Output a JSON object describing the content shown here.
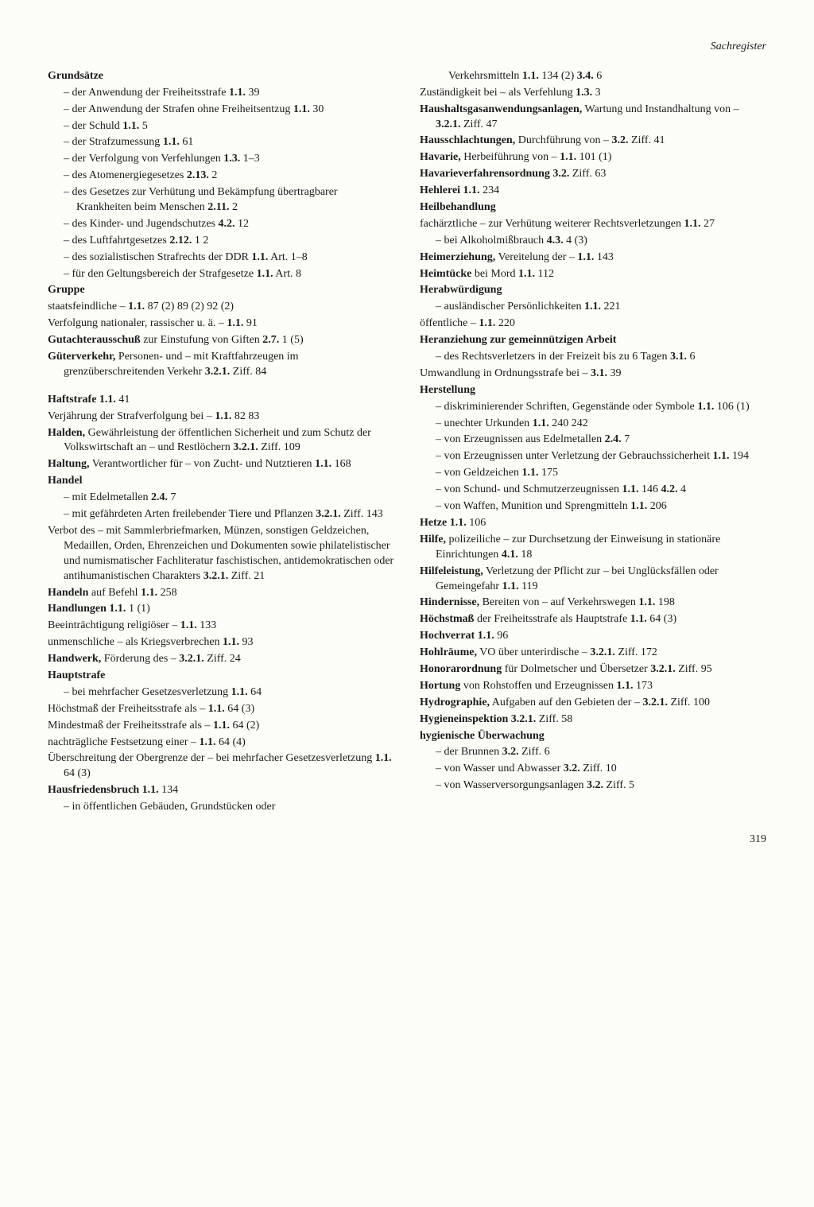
{
  "header": "Sachregister",
  "pageNumber": "319",
  "left": [
    {
      "type": "bold",
      "text": "Grundsätze"
    },
    {
      "type": "sub",
      "html": "der Anwendung der Freiheitsstrafe  <b>1.1.</b> 39"
    },
    {
      "type": "sub",
      "html": "der Anwendung der Strafen ohne Freiheitsentzug  <b>1.1.</b> 30"
    },
    {
      "type": "sub",
      "html": "der Schuld  <b>1.1.</b> 5"
    },
    {
      "type": "sub",
      "html": "der Strafzumessung  <b>1.1.</b> 61"
    },
    {
      "type": "sub",
      "html": "der Verfolgung von Verfehlungen  <b>1.3.</b> 1–3"
    },
    {
      "type": "sub",
      "html": "des Atomenergiegesetzes  <b>2.13.</b> 2"
    },
    {
      "type": "sub",
      "html": "des Gesetzes zur Verhütung und Bekämpfung übertragbarer Krankheiten beim Menschen <b>2.11.</b> 2"
    },
    {
      "type": "sub",
      "html": "des Kinder- und Jugendschutzes  <b>4.2.</b> 12"
    },
    {
      "type": "sub",
      "html": "des Luftfahrtgesetzes  <b>2.12.</b> 1 2"
    },
    {
      "type": "sub",
      "html": "des sozialistischen Strafrechts der DDR <b>1.1.</b> Art. 1–8"
    },
    {
      "type": "sub",
      "html": "für den Geltungsbereich der Strafgesetze <b>1.1.</b> Art. 8"
    },
    {
      "type": "bold",
      "text": "Gruppe"
    },
    {
      "type": "line",
      "html": "staatsfeindliche –  <b>1.1.</b> 87 (2) 89 (2) 92 (2)"
    },
    {
      "type": "line",
      "html": "Verfolgung nationaler, rassischer u. ä. –  <b>1.1.</b> 91"
    },
    {
      "type": "line",
      "html": "<b>Gutachterausschuß</b> zur Einstufung von Giften <b>2.7.</b> 1 (5)"
    },
    {
      "type": "line",
      "html": "<b>Güterverkehr,</b> Personen- und – mit Kraftfahrzeugen im grenzüberschreitenden Verkehr <b>3.2.1.</b> Ziff. 84"
    },
    {
      "type": "spacer"
    },
    {
      "type": "line",
      "html": "<b>Haftstrafe  1.1.</b> 41"
    },
    {
      "type": "line",
      "html": "Verjährung der Strafverfolgung bei –  <b>1.1.</b> 82 83"
    },
    {
      "type": "line",
      "html": "<b>Halden,</b> Gewährleistung der öffentlichen Sicherheit und zum Schutz der Volkswirtschaft an – und Restlöchern  <b>3.2.1.</b> Ziff. 109"
    },
    {
      "type": "line",
      "html": "<b>Haltung,</b> Verantwortlicher für – von Zucht- und Nutztieren  <b>1.1.</b> 168"
    },
    {
      "type": "bold",
      "text": "Handel"
    },
    {
      "type": "sub",
      "html": "mit Edelmetallen  <b>2.4.</b> 7"
    },
    {
      "type": "sub",
      "html": "mit gefährdeten Arten freilebender Tiere und Pflanzen  <b>3.2.1.</b> Ziff. 143"
    },
    {
      "type": "line",
      "html": "Verbot des – mit Sammlerbriefmarken, Münzen, sonstigen Geldzeichen, Medaillen, Orden, Ehrenzeichen und Dokumenten sowie philatelistischer und numismatischer Fachliteratur faschistischen, antidemokratischen oder antihumanistischen Charakters  <b>3.2.1.</b> Ziff. 21"
    },
    {
      "type": "line",
      "html": "<b>Handeln</b> auf Befehl  <b>1.1.</b> 258"
    },
    {
      "type": "line",
      "html": "<b>Handlungen  1.1.</b> 1 (1)"
    },
    {
      "type": "line",
      "html": "Beeinträchtigung religiöser –  <b>1.1.</b> 133"
    },
    {
      "type": "line",
      "html": "unmenschliche – als Kriegsverbrechen  <b>1.1.</b> 93"
    },
    {
      "type": "line",
      "html": "<b>Handwerk,</b> Förderung des –  <b>3.2.1.</b> Ziff. 24"
    },
    {
      "type": "bold",
      "text": "Hauptstrafe"
    },
    {
      "type": "sub",
      "html": "bei mehrfacher Gesetzesverletzung  <b>1.1.</b> 64"
    },
    {
      "type": "line",
      "html": "Höchstmaß der Freiheitsstrafe als –  <b>1.1.</b> 64 (3)"
    },
    {
      "type": "line",
      "html": "Mindestmaß der Freiheitsstrafe als –  <b>1.1.</b> 64 (2)"
    },
    {
      "type": "line",
      "html": "nachträgliche Festsetzung einer –  <b>1.1.</b> 64 (4)"
    },
    {
      "type": "line",
      "html": "Überschreitung der Obergrenze der – bei mehrfacher Gesetzesverletzung  <b>1.1.</b> 64 (3)"
    },
    {
      "type": "line",
      "html": "<b>Hausfriedensbruch  1.1.</b> 134"
    },
    {
      "type": "sub",
      "html": "in öffentlichen Gebäuden, Grundstücken oder"
    }
  ],
  "right": [
    {
      "type": "line",
      "html": "Verkehrsmitteln  <b>1.1.</b> 134 (2)  <b>3.4.</b> 6",
      "cont": true
    },
    {
      "type": "line",
      "html": "Zuständigkeit bei – als Verfehlung  <b>1.3.</b> 3"
    },
    {
      "type": "line",
      "html": "<b>Haushaltsgasanwendungsanlagen,</b> Wartung und Instandhaltung von –  <b>3.2.1.</b> Ziff. 47"
    },
    {
      "type": "line",
      "html": "<b>Hausschlachtungen,</b> Durchführung von – <b>3.2.</b> Ziff. 41"
    },
    {
      "type": "line",
      "html": "<b>Havarie,</b> Herbeiführung von –  <b>1.1.</b> 101 (1)"
    },
    {
      "type": "line",
      "html": "<b>Havarieverfahrensordnung  3.2.</b> Ziff. 63"
    },
    {
      "type": "line",
      "html": "<b>Hehlerei  1.1.</b> 234"
    },
    {
      "type": "bold",
      "text": "Heilbehandlung"
    },
    {
      "type": "line",
      "html": "fachärztliche – zur Verhütung weiterer Rechtsverletzungen  <b>1.1.</b> 27"
    },
    {
      "type": "sub",
      "html": "bei Alkoholmißbrauch  <b>4.3.</b> 4 (3)"
    },
    {
      "type": "line",
      "html": "<b>Heimerziehung,</b> Vereitelung der –  <b>1.1.</b> 143"
    },
    {
      "type": "line",
      "html": "<b>Heimtücke</b> bei Mord  <b>1.1.</b> 112"
    },
    {
      "type": "bold",
      "text": "Herabwürdigung"
    },
    {
      "type": "sub",
      "html": "ausländischer Persönlichkeiten  <b>1.1.</b> 221"
    },
    {
      "type": "line",
      "html": "öffentliche –  <b>1.1.</b> 220"
    },
    {
      "type": "bold",
      "text": "Heranziehung zur gemeinnützigen Arbeit"
    },
    {
      "type": "sub",
      "html": "des Rechtsverletzers in der Freizeit bis zu 6 Tagen  <b>3.1.</b> 6"
    },
    {
      "type": "line",
      "html": "Umwandlung in Ordnungsstrafe bei –  <b>3.1.</b> 39"
    },
    {
      "type": "bold",
      "text": "Herstellung"
    },
    {
      "type": "sub",
      "html": "diskriminierender Schriften, Gegenstände oder Symbole  <b>1.1.</b> 106 (1)"
    },
    {
      "type": "sub",
      "html": "unechter Urkunden  <b>1.1.</b> 240 242"
    },
    {
      "type": "sub",
      "html": "von Erzeugnissen aus Edelmetallen  <b>2.4.</b> 7"
    },
    {
      "type": "sub",
      "html": "von Erzeugnissen unter Verletzung der Gebrauchssicherheit  <b>1.1.</b> 194"
    },
    {
      "type": "sub",
      "html": "von Geldzeichen  <b>1.1.</b> 175"
    },
    {
      "type": "sub",
      "html": "von Schund- und Schmutzerzeugnissen  <b>1.1.</b> 146  <b>4.2.</b> 4"
    },
    {
      "type": "sub",
      "html": "von Waffen, Munition und Sprengmitteln <b>1.1.</b> 206"
    },
    {
      "type": "line",
      "html": "<b>Hetze  1.1.</b> 106"
    },
    {
      "type": "line",
      "html": "<b>Hilfe,</b> polizeiliche – zur Durchsetzung der Einweisung in stationäre Einrichtungen <b>4.1.</b> 18"
    },
    {
      "type": "line",
      "html": "<b>Hilfeleistung,</b> Verletzung der Pflicht zur – bei Unglücksfällen oder Gemeingefahr  <b>1.1.</b> 119"
    },
    {
      "type": "line",
      "html": "<b>Hindernisse,</b> Bereiten von – auf Verkehrswegen <b>1.1.</b> 198"
    },
    {
      "type": "line",
      "html": "<b>Höchstmaß</b> der Freiheitsstrafe als Hauptstrafe <b>1.1.</b> 64 (3)"
    },
    {
      "type": "line",
      "html": "<b>Hochverrat  1.1.</b> 96"
    },
    {
      "type": "line",
      "html": "<b>Hohlräume,</b> VO über unterirdische – <b>3.2.1.</b> Ziff. 172"
    },
    {
      "type": "line",
      "html": "<b>Honorarordnung</b> für Dolmetscher und Übersetzer <b>3.2.1.</b> Ziff. 95"
    },
    {
      "type": "line",
      "html": "<b>Hortung</b> von Rohstoffen und Erzeugnissen <b>1.1.</b> 173"
    },
    {
      "type": "line",
      "html": "<b>Hydrographie,</b> Aufgaben auf den Gebieten der – <b>3.2.1.</b> Ziff. 100"
    },
    {
      "type": "line",
      "html": "<b>Hygieneinspektion  3.2.1.</b> Ziff. 58"
    },
    {
      "type": "bold",
      "text": "hygienische Überwachung"
    },
    {
      "type": "sub",
      "html": "der Brunnen  <b>3.2.</b> Ziff. 6"
    },
    {
      "type": "sub",
      "html": "von Wasser und Abwasser  <b>3.2.</b> Ziff. 10"
    },
    {
      "type": "sub",
      "html": "von Wasserversorgungsanlagen  <b>3.2.</b> Ziff. 5"
    }
  ]
}
